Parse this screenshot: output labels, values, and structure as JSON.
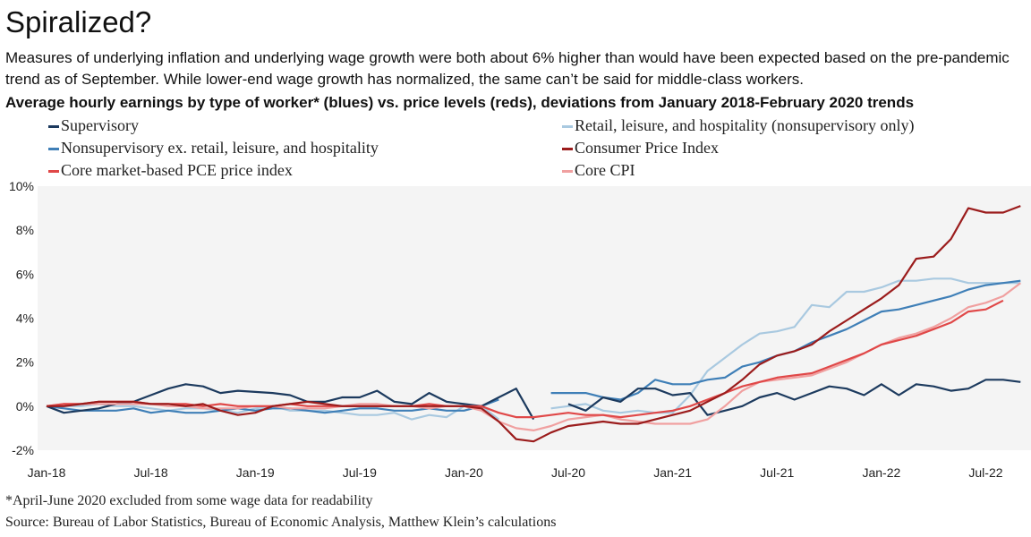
{
  "title": "Spiralized?",
  "subtitle": "Measures of underlying inflation and underlying wage growth were both about 6% higher than would have been expected based on the pre-pandemic trend as of September. While lower-end wage growth has normalized, the same can’t be said for middle-class workers.",
  "footnote": "*April-June 2020 excluded from some wage data for readability",
  "source": "Source: Bureau of Labor Statistics, Bureau of Economic Analysis, Matthew Klein’s calculations",
  "chart_data": {
    "type": "line",
    "title": "Average hourly earnings by type of worker* (blues) vs. price levels (reds), deviations from January 2018-February 2020 trends",
    "y_tick_labels": [
      "10%",
      "8%",
      "6%",
      "4%",
      "2%",
      "0%",
      "-2%"
    ],
    "x_tick_labels": [
      "Jan-18",
      "Jul-18",
      "Jan-19",
      "Jul-19",
      "Jan-20",
      "Jul-20",
      "Jan-21",
      "Jul-21",
      "Jan-22",
      "Jul-22"
    ],
    "ylim": [
      -2,
      10
    ],
    "xlim": [
      "2018-01",
      "2022-09"
    ],
    "grid": false,
    "legend_position": "top",
    "series": [
      {
        "name": "Supervisory",
        "color": "#1c3a5e",
        "x": [
          "2018-01",
          "2018-02",
          "2018-03",
          "2018-04",
          "2018-05",
          "2018-06",
          "2018-07",
          "2018-08",
          "2018-09",
          "2018-10",
          "2018-11",
          "2018-12",
          "2019-01",
          "2019-02",
          "2019-03",
          "2019-04",
          "2019-05",
          "2019-06",
          "2019-07",
          "2019-08",
          "2019-09",
          "2019-10",
          "2019-11",
          "2019-12",
          "2020-01",
          "2020-02",
          "2020-03",
          "2020-04",
          "2020-05",
          null,
          "2020-07",
          "2020-08",
          "2020-09",
          "2020-10",
          "2020-11",
          "2020-12",
          "2021-01",
          "2021-02",
          "2021-03",
          "2021-04",
          "2021-05",
          "2021-06",
          "2021-07",
          "2021-08",
          "2021-09",
          "2021-10",
          "2021-11",
          "2021-12",
          "2022-01",
          "2022-02",
          "2022-03",
          "2022-04",
          "2022-05",
          "2022-06",
          "2022-07",
          "2022-08",
          "2022-09"
        ],
        "values": [
          0.0,
          -0.3,
          -0.2,
          -0.1,
          0.1,
          0.2,
          0.5,
          0.8,
          1.0,
          0.9,
          0.6,
          0.7,
          0.65,
          0.6,
          0.5,
          0.2,
          0.2,
          0.4,
          0.4,
          0.7,
          0.2,
          0.1,
          0.6,
          0.2,
          0.1,
          0.0,
          0.4,
          0.8,
          -0.6,
          null,
          0.1,
          -0.2,
          0.4,
          0.2,
          0.8,
          0.8,
          0.5,
          0.6,
          -0.4,
          -0.2,
          0.0,
          0.4,
          0.6,
          0.3,
          0.6,
          0.9,
          0.8,
          0.5,
          1.0,
          0.5,
          1.0,
          0.9,
          0.7,
          0.8,
          1.2,
          1.2,
          1.1
        ]
      },
      {
        "name": "Nonsupervisory ex. retail, leisure, and hospitality",
        "color": "#3f7fb7",
        "x": [
          "2018-01",
          "2018-02",
          "2018-03",
          "2018-04",
          "2018-05",
          "2018-06",
          "2018-07",
          "2018-08",
          "2018-09",
          "2018-10",
          "2018-11",
          "2018-12",
          "2019-01",
          "2019-02",
          "2019-03",
          "2019-04",
          "2019-05",
          "2019-06",
          "2019-07",
          "2019-08",
          "2019-09",
          "2019-10",
          "2019-11",
          "2019-12",
          "2020-01",
          "2020-02",
          "2020-03",
          null,
          "2020-06",
          "2020-07",
          "2020-08",
          "2020-09",
          "2020-10",
          "2020-11",
          "2020-12",
          "2021-01",
          "2021-02",
          "2021-03",
          "2021-04",
          "2021-05",
          "2021-06",
          "2021-07",
          "2021-08",
          "2021-09",
          "2021-10",
          "2021-11",
          "2021-12",
          "2022-01",
          "2022-02",
          "2022-03",
          "2022-04",
          "2022-05",
          "2022-06",
          "2022-07",
          "2022-08",
          "2022-09"
        ],
        "values": [
          0.0,
          -0.1,
          -0.2,
          -0.2,
          -0.2,
          -0.1,
          -0.3,
          -0.2,
          -0.3,
          -0.3,
          -0.2,
          -0.1,
          -0.2,
          -0.1,
          -0.1,
          -0.2,
          -0.3,
          -0.2,
          -0.1,
          -0.1,
          -0.2,
          -0.2,
          -0.1,
          -0.2,
          -0.2,
          0.0,
          0.3,
          null,
          0.6,
          0.6,
          0.6,
          0.4,
          0.3,
          0.6,
          1.2,
          1.0,
          1.0,
          1.2,
          1.3,
          1.8,
          2.0,
          2.3,
          2.5,
          2.9,
          3.2,
          3.5,
          3.9,
          4.3,
          4.4,
          4.6,
          4.8,
          5.0,
          5.3,
          5.5,
          5.6,
          5.7
        ]
      },
      {
        "name": "Core market-based PCE price index",
        "color": "#e04848",
        "x": [
          "2018-01",
          "2018-02",
          "2018-03",
          "2018-04",
          "2018-05",
          "2018-06",
          "2018-07",
          "2018-08",
          "2018-09",
          "2018-10",
          "2018-11",
          "2018-12",
          "2019-01",
          "2019-02",
          "2019-03",
          "2019-04",
          "2019-05",
          "2019-06",
          "2019-07",
          "2019-08",
          "2019-09",
          "2019-10",
          "2019-11",
          "2019-12",
          "2020-01",
          "2020-02",
          "2020-03",
          "2020-04",
          "2020-05",
          "2020-06",
          "2020-07",
          "2020-08",
          "2020-09",
          "2020-10",
          "2020-11",
          "2020-12",
          "2021-01",
          "2021-02",
          "2021-03",
          "2021-04",
          "2021-05",
          "2021-06",
          "2021-07",
          "2021-08",
          "2021-09",
          "2021-10",
          "2021-11",
          "2021-12",
          "2022-01",
          "2022-02",
          "2022-03",
          "2022-04",
          "2022-05",
          "2022-06",
          "2022-07",
          "2022-08"
        ],
        "values": [
          0.0,
          0.1,
          0.1,
          0.2,
          0.2,
          0.2,
          0.1,
          0.1,
          0.1,
          0.0,
          0.1,
          0.0,
          0.0,
          0.0,
          0.1,
          0.0,
          0.0,
          0.0,
          0.0,
          0.0,
          0.0,
          0.0,
          0.1,
          0.0,
          0.0,
          0.0,
          -0.3,
          -0.5,
          -0.5,
          -0.4,
          -0.3,
          -0.4,
          -0.4,
          -0.5,
          -0.4,
          -0.3,
          -0.2,
          0.0,
          0.3,
          0.6,
          0.9,
          1.1,
          1.3,
          1.4,
          1.5,
          1.8,
          2.1,
          2.4,
          2.8,
          3.0,
          3.2,
          3.5,
          3.8,
          4.3,
          4.4,
          4.8
        ]
      },
      {
        "name": "Retail, leisure, and hospitality (nonsupervisory only)",
        "color": "#a9c9e0",
        "x": [
          "2018-01",
          "2018-02",
          "2018-03",
          "2018-04",
          "2018-05",
          "2018-06",
          "2018-07",
          "2018-08",
          "2018-09",
          "2018-10",
          "2018-11",
          "2018-12",
          "2019-01",
          "2019-02",
          "2019-03",
          "2019-04",
          "2019-05",
          "2019-06",
          "2019-07",
          "2019-08",
          "2019-09",
          "2019-10",
          "2019-11",
          "2019-12",
          "2020-01",
          "2020-02",
          "2020-03",
          null,
          "2020-06",
          "2020-07",
          "2020-08",
          "2020-09",
          "2020-10",
          "2020-11",
          "2020-12",
          "2021-01",
          "2021-02",
          "2021-03",
          "2021-04",
          "2021-05",
          "2021-06",
          "2021-07",
          "2021-08",
          "2021-09",
          "2021-10",
          "2021-11",
          "2021-12",
          "2022-01",
          "2022-02",
          "2022-03",
          "2022-04",
          "2022-05",
          "2022-06",
          "2022-07",
          "2022-08",
          "2022-09"
        ],
        "values": [
          0.0,
          0.0,
          0.0,
          0.1,
          0.0,
          0.0,
          -0.1,
          -0.2,
          -0.1,
          -0.1,
          -0.2,
          -0.3,
          -0.1,
          0.0,
          -0.2,
          -0.2,
          -0.2,
          -0.3,
          -0.4,
          -0.4,
          -0.3,
          -0.6,
          -0.4,
          -0.5,
          0.0,
          0.0,
          -0.6,
          null,
          -0.1,
          0.0,
          0.1,
          -0.2,
          -0.3,
          -0.2,
          -0.3,
          -0.3,
          0.5,
          1.6,
          2.2,
          2.8,
          3.3,
          3.4,
          3.6,
          4.6,
          4.5,
          5.2,
          5.2,
          5.4,
          5.7,
          5.7,
          5.8,
          5.8,
          5.6,
          5.6,
          5.6,
          5.6
        ]
      },
      {
        "name": "Consumer Price Index",
        "color": "#9b1c1c",
        "x": [
          "2018-01",
          "2018-02",
          "2018-03",
          "2018-04",
          "2018-05",
          "2018-06",
          "2018-07",
          "2018-08",
          "2018-09",
          "2018-10",
          "2018-11",
          "2018-12",
          "2019-01",
          "2019-02",
          "2019-03",
          "2019-04",
          "2019-05",
          "2019-06",
          "2019-07",
          "2019-08",
          "2019-09",
          "2019-10",
          "2019-11",
          "2019-12",
          "2020-01",
          "2020-02",
          "2020-03",
          "2020-04",
          "2020-05",
          "2020-06",
          "2020-07",
          "2020-08",
          "2020-09",
          "2020-10",
          "2020-11",
          "2020-12",
          "2021-01",
          "2021-02",
          "2021-03",
          "2021-04",
          "2021-05",
          "2021-06",
          "2021-07",
          "2021-08",
          "2021-09",
          "2021-10",
          "2021-11",
          "2021-12",
          "2022-01",
          "2022-02",
          "2022-03",
          "2022-04",
          "2022-05",
          "2022-06",
          "2022-07",
          "2022-08",
          "2022-09"
        ],
        "values": [
          0.0,
          0.0,
          0.1,
          0.2,
          0.2,
          0.2,
          0.1,
          0.1,
          0.0,
          0.1,
          -0.2,
          -0.4,
          -0.3,
          0.0,
          0.1,
          0.2,
          0.1,
          0.0,
          0.0,
          0.0,
          0.0,
          0.0,
          0.0,
          0.0,
          0.0,
          -0.1,
          -0.7,
          -1.5,
          -1.6,
          -1.2,
          -0.9,
          -0.8,
          -0.7,
          -0.8,
          -0.8,
          -0.6,
          -0.4,
          -0.2,
          0.2,
          0.6,
          1.2,
          1.9,
          2.3,
          2.5,
          2.8,
          3.4,
          3.9,
          4.4,
          4.9,
          5.5,
          6.7,
          6.8,
          7.6,
          9.0,
          8.8,
          8.8,
          9.1
        ]
      },
      {
        "name": "Core CPI",
        "color": "#f0a0a0",
        "x": [
          "2018-01",
          "2018-02",
          "2018-03",
          "2018-04",
          "2018-05",
          "2018-06",
          "2018-07",
          "2018-08",
          "2018-09",
          "2018-10",
          "2018-11",
          "2018-12",
          "2019-01",
          "2019-02",
          "2019-03",
          "2019-04",
          "2019-05",
          "2019-06",
          "2019-07",
          "2019-08",
          "2019-09",
          "2019-10",
          "2019-11",
          "2019-12",
          "2020-01",
          "2020-02",
          "2020-03",
          "2020-04",
          "2020-05",
          "2020-06",
          "2020-07",
          "2020-08",
          "2020-09",
          "2020-10",
          "2020-11",
          "2020-12",
          "2021-01",
          "2021-02",
          "2021-03",
          "2021-04",
          "2021-05",
          "2021-06",
          "2021-07",
          "2021-08",
          "2021-09",
          "2021-10",
          "2021-11",
          "2021-12",
          "2022-01",
          "2022-02",
          "2022-03",
          "2022-04",
          "2022-05",
          "2022-06",
          "2022-07",
          "2022-08",
          "2022-09"
        ],
        "values": [
          0.0,
          0.1,
          0.1,
          0.1,
          0.1,
          0.1,
          0.1,
          0.0,
          0.0,
          -0.1,
          -0.1,
          -0.1,
          0.0,
          0.0,
          -0.1,
          -0.1,
          -0.1,
          0.0,
          0.1,
          0.1,
          0.0,
          0.0,
          -0.1,
          0.0,
          0.0,
          -0.2,
          -0.7,
          -1.0,
          -1.1,
          -0.9,
          -0.6,
          -0.5,
          -0.4,
          -0.6,
          -0.7,
          -0.8,
          -0.8,
          -0.8,
          -0.6,
          0.0,
          0.7,
          1.1,
          1.2,
          1.3,
          1.4,
          1.7,
          2.0,
          2.4,
          2.8,
          3.1,
          3.3,
          3.6,
          4.0,
          4.5,
          4.7,
          5.0,
          5.6
        ]
      }
    ]
  }
}
